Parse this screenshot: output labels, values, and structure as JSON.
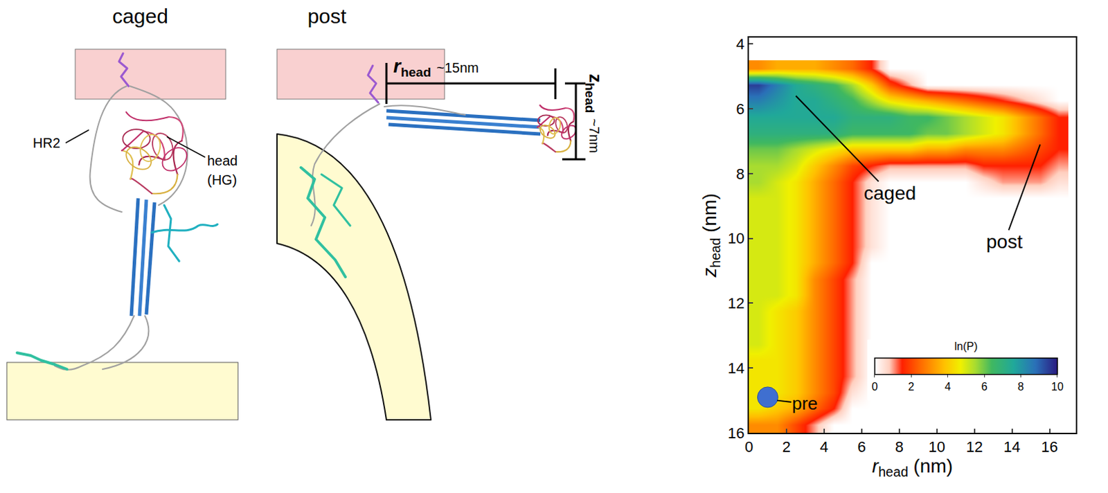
{
  "chart_data": {
    "type": "heatmap",
    "x": [
      0.5,
      1.5,
      2.5,
      3.5,
      4.5,
      5.5,
      6.5,
      7.5,
      8.5,
      9.5,
      10.5,
      11.5,
      12.5,
      13.5,
      14.5,
      15.5,
      16.5
    ],
    "y": [
      4.75,
      5.25,
      5.75,
      6.25,
      6.75,
      7.25,
      7.75,
      8.25,
      8.75,
      9.25,
      9.75,
      10.25,
      10.75,
      11.25,
      11.75,
      12.25,
      12.75,
      13.25,
      13.75,
      14.25,
      14.75,
      15.25,
      15.75
    ],
    "z": [
      [
        3,
        3.5,
        3.5,
        3.5,
        3,
        2.5,
        1.5,
        0,
        0,
        0,
        0,
        0,
        0,
        0,
        0,
        0,
        0
      ],
      [
        9.5,
        8.5,
        7.5,
        7,
        6.5,
        5.5,
        4,
        2,
        1,
        0,
        0,
        0,
        0,
        0,
        0,
        0,
        0
      ],
      [
        8.5,
        8,
        7.5,
        7.5,
        7,
        6.5,
        5.5,
        4.5,
        4,
        3.5,
        3,
        2.5,
        2,
        1.5,
        1,
        0.5,
        0
      ],
      [
        7.5,
        7.5,
        7.5,
        7.5,
        7.5,
        7,
        7,
        7,
        6.5,
        6.5,
        6,
        5.5,
        5,
        4.5,
        3.5,
        2.5,
        1.5
      ],
      [
        7,
        7,
        7,
        7,
        7,
        6.5,
        6.5,
        6.5,
        6.5,
        6,
        6,
        5.5,
        5,
        4.5,
        3.5,
        2.5,
        1.5
      ],
      [
        6,
        6,
        5.5,
        5,
        4.5,
        4,
        4,
        4,
        4,
        3.5,
        3.5,
        3,
        3,
        3,
        2.5,
        2,
        1.5
      ],
      [
        5.5,
        5.5,
        5,
        4,
        3,
        2,
        1.5,
        1,
        1,
        1,
        1,
        1,
        1.5,
        1.5,
        1.5,
        1.5,
        1
      ],
      [
        5.5,
        5,
        4.5,
        3.5,
        2.5,
        1.5,
        0.5,
        0,
        0,
        0,
        0,
        0,
        0.5,
        1,
        1,
        1,
        0.5
      ],
      [
        5,
        5,
        4.5,
        3.5,
        2.5,
        1.5,
        0.5,
        0,
        0,
        0,
        0,
        0,
        0,
        0,
        0,
        0,
        0
      ],
      [
        5,
        5,
        4.5,
        3.5,
        2.5,
        1.5,
        0.5,
        0,
        0,
        0,
        0,
        0,
        0,
        0,
        0,
        0,
        0
      ],
      [
        5,
        5,
        4.5,
        3.5,
        2.5,
        1.5,
        0.5,
        0,
        0,
        0,
        0,
        0,
        0,
        0,
        0,
        0,
        0
      ],
      [
        5,
        5,
        4.5,
        3.5,
        2.5,
        1.5,
        0.5,
        0,
        0,
        0,
        0,
        0,
        0,
        0,
        0,
        0,
        0
      ],
      [
        5,
        5,
        4.5,
        3.5,
        2.5,
        1.5,
        0,
        0,
        0,
        0,
        0,
        0,
        0,
        0,
        0,
        0,
        0
      ],
      [
        5,
        5,
        4.5,
        3,
        2,
        1,
        0,
        0,
        0,
        0,
        0,
        0,
        0,
        0,
        0,
        0,
        0
      ],
      [
        5,
        5,
        4.5,
        3,
        2,
        1,
        0,
        0,
        0,
        0,
        0,
        0,
        0,
        0,
        0,
        0,
        0
      ],
      [
        5,
        4.5,
        4,
        3,
        2,
        1,
        0,
        0,
        0,
        0,
        0,
        0,
        0,
        0,
        0,
        0,
        0
      ],
      [
        5,
        4.5,
        4,
        3,
        2,
        1,
        0,
        0,
        0,
        0,
        0,
        0,
        0,
        0,
        0,
        0,
        0
      ],
      [
        5,
        4.5,
        4,
        3,
        2,
        1,
        0,
        0,
        0,
        0,
        0,
        0,
        0,
        0,
        0,
        0,
        0
      ],
      [
        4.5,
        4.5,
        4,
        3,
        2,
        1,
        0,
        0,
        0,
        0,
        0,
        0,
        0,
        0,
        0,
        0,
        0
      ],
      [
        4.5,
        4.5,
        4,
        3,
        2,
        1,
        0,
        0,
        0,
        0,
        0,
        0,
        0,
        0,
        0,
        0,
        0
      ],
      [
        4.5,
        4.5,
        4,
        3,
        2,
        0.5,
        0,
        0,
        0,
        0,
        0,
        0,
        0,
        0,
        0,
        0,
        0
      ],
      [
        4.5,
        4,
        3.5,
        2.5,
        1.5,
        0,
        0,
        0,
        0,
        0,
        0,
        0,
        0,
        0,
        0,
        0,
        0
      ],
      [
        3,
        3,
        2,
        1,
        0,
        0,
        0,
        0,
        0,
        0,
        0,
        0,
        0,
        0,
        0,
        0,
        0
      ]
    ],
    "x_label": {
      "symbol": "r",
      "subscript": "head",
      "unit": "(nm)"
    },
    "y_label": {
      "symbol": "z",
      "subscript": "head",
      "unit": "(nm)"
    },
    "xlim": [
      0,
      17.4
    ],
    "ylim": [
      16,
      3.8
    ],
    "xticks": [
      0,
      2,
      4,
      6,
      8,
      10,
      12,
      14,
      16
    ],
    "yticks": [
      4,
      6,
      8,
      10,
      12,
      14,
      16
    ],
    "grid": false,
    "colorbar": {
      "title": "ln(P)",
      "range": [
        0,
        10
      ],
      "ticks": [
        0,
        2,
        4,
        6,
        8,
        10
      ]
    },
    "annotations": [
      {
        "text": "caged",
        "x": 2.5,
        "y": 5.6,
        "text_x": 7.5,
        "text_y": 8.6
      },
      {
        "text": "post",
        "x": 15.5,
        "y": 7.1,
        "text_x": 13.6,
        "text_y": 10.1
      },
      {
        "text": "pre",
        "x": 1.5,
        "y": 15,
        "text_x": 3,
        "text_y": 15.1
      }
    ],
    "markers": [
      {
        "x": 1,
        "y": 14.9,
        "color": "#3f6fd0",
        "marker": "circle"
      }
    ]
  },
  "panels": [
    {
      "title": "caged",
      "labels": {
        "hr2": "HR2",
        "head": [
          "head",
          "(HG)"
        ]
      }
    },
    {
      "title": "post",
      "r_measure": {
        "symbol": "r",
        "subscript": "head",
        "text": "~15nm"
      },
      "z_measure": {
        "symbol": "z",
        "subscript": "head",
        "text": "~7nm"
      }
    }
  ]
}
